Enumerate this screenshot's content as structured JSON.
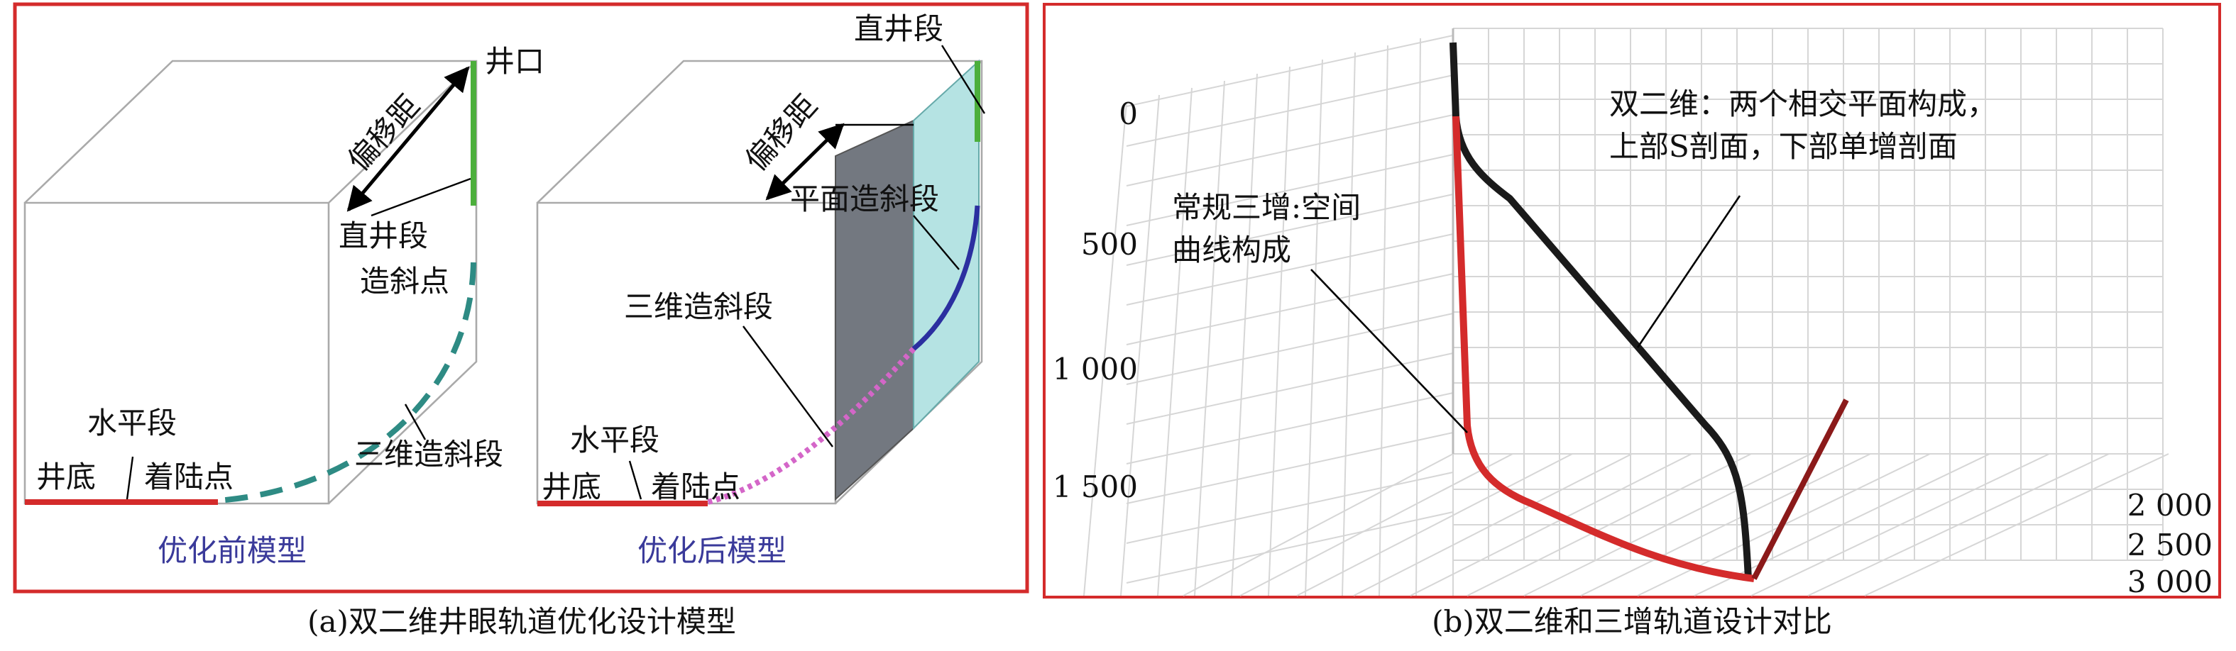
{
  "panel_a": {
    "before_model": {
      "title": "优化前模型",
      "wellhead": "井口",
      "offset": "偏移距",
      "vertical_section": "直井段",
      "kickoff_point": "造斜点",
      "horizontal_section": "水平段",
      "well_bottom": "井底",
      "landing_point": "着陆点",
      "build_3d": "三维造斜段"
    },
    "after_model": {
      "title": "优化后模型",
      "vertical_section": "直井段",
      "offset": "偏移距",
      "planar_build": "平面造斜段",
      "build_3d": "三维造斜段",
      "horizontal_section": "水平段",
      "well_bottom": "井底",
      "landing_point": "着陆点"
    },
    "caption": "(a)双二维井眼轨道优化设计模型"
  },
  "panel_b": {
    "depth_ticks": [
      "0",
      "500",
      "1 000",
      "1 500"
    ],
    "offset_ticks": [
      "2 000",
      "2 500",
      "3 000"
    ],
    "conventional_note": [
      "常规三增:空间",
      "曲线构成"
    ],
    "double_2d_note": [
      "双二维：两个相交平面构成，",
      "上部S剖面，下部单增剖面"
    ],
    "caption": "(b)双二维和三增轨道设计对比"
  }
}
